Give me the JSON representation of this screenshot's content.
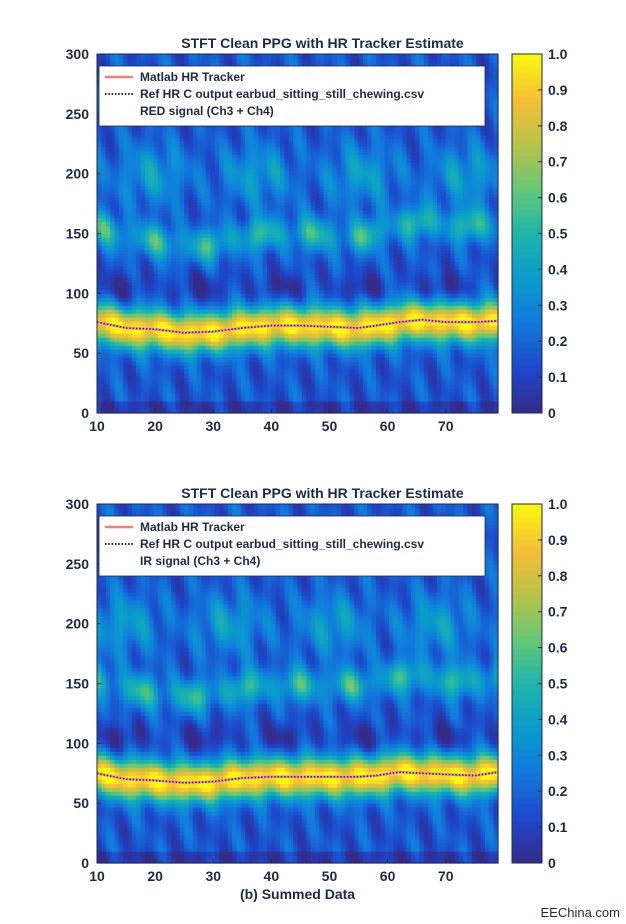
{
  "watermark": "EEChina.com",
  "chart_data": [
    {
      "type": "heatmap",
      "title": "STFT Clean PPG with HR Tracker Estimate",
      "xlabel": "",
      "ylabel": "",
      "xlim": [
        10,
        79
      ],
      "ylim": [
        0,
        300
      ],
      "xticks": [
        10,
        20,
        30,
        40,
        50,
        60,
        70
      ],
      "yticks": [
        0,
        50,
        100,
        150,
        200,
        250,
        300
      ],
      "colorbar": {
        "ticks": [
          "0",
          "0.1",
          "0.2",
          "0.3",
          "0.4",
          "0.5",
          "0.6",
          "0.7",
          "0.8",
          "0.9",
          "1.0"
        ],
        "range": [
          0,
          1
        ],
        "colormap": "parula"
      },
      "legend": {
        "position": "top",
        "entries": [
          {
            "label": "Matlab HR Tracker",
            "style": "solid",
            "color": "#f08080"
          },
          {
            "label": "Ref HR C output earbud_sitting_still_chewing.csv",
            "style": "dotted",
            "color": "#222222"
          },
          {
            "label": "RED signal (Ch3 + Ch4)",
            "style": "none"
          }
        ]
      },
      "series": [
        {
          "name": "Matlab HR Tracker",
          "x": [
            10,
            15,
            20,
            25,
            30,
            35,
            40,
            45,
            50,
            55,
            58,
            62,
            66,
            70,
            75,
            79
          ],
          "y": [
            76,
            71,
            70,
            67,
            68,
            71,
            73,
            73,
            72,
            71,
            73,
            76,
            78,
            76,
            76,
            77
          ]
        }
      ]
    },
    {
      "type": "heatmap",
      "title": "STFT Clean PPG with HR Tracker Estimate",
      "xlabel": "(b) Summed Data",
      "ylabel": "",
      "xlim": [
        10,
        79
      ],
      "ylim": [
        0,
        300
      ],
      "xticks": [
        10,
        20,
        30,
        40,
        50,
        60,
        70
      ],
      "yticks": [
        0,
        50,
        100,
        150,
        200,
        250,
        300
      ],
      "colorbar": {
        "ticks": [
          "0",
          "0.1",
          "0.2",
          "0.3",
          "0.4",
          "0.5",
          "0.6",
          "0.7",
          "0.8",
          "0.9",
          "1.0"
        ],
        "range": [
          0,
          1
        ],
        "colormap": "parula"
      },
      "legend": {
        "position": "top",
        "entries": [
          {
            "label": "Matlab HR Tracker",
            "style": "solid",
            "color": "#f08080"
          },
          {
            "label": "Ref HR C output earbud_sitting_still_chewing.csv",
            "style": "dotted",
            "color": "#222222"
          },
          {
            "label": "IR signal (Ch3 + Ch4)",
            "style": "none"
          }
        ]
      },
      "series": [
        {
          "name": "Matlab HR Tracker",
          "x": [
            10,
            15,
            20,
            25,
            30,
            35,
            40,
            45,
            50,
            55,
            58,
            62,
            66,
            70,
            75,
            79
          ],
          "y": [
            75,
            70,
            69,
            67,
            68,
            71,
            72,
            72,
            72,
            72,
            73,
            76,
            75,
            74,
            73,
            76
          ]
        }
      ]
    }
  ]
}
